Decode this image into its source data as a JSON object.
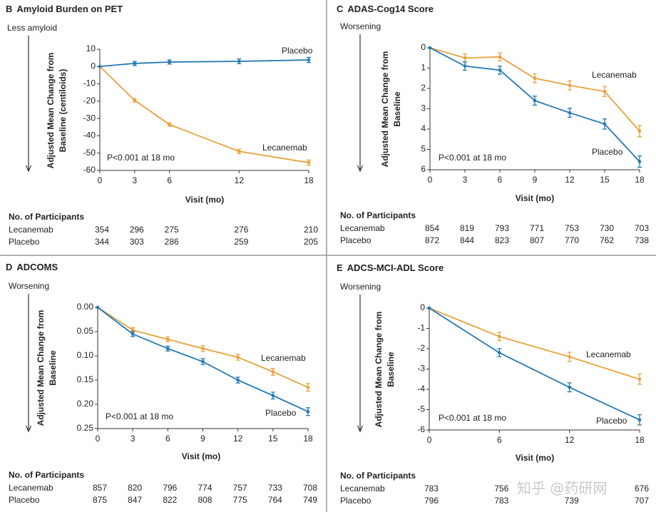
{
  "chart_data": [
    {
      "type": "line",
      "panel_label": "B",
      "title": "Amyloid Burden on PET",
      "direction_label": "Less amyloid",
      "ylabel": [
        "Adjusted Mean Change from",
        "Baseline (centiloids)"
      ],
      "xlabel": "Visit (mo)",
      "annotation": "P<0.001 at 18 mo",
      "x": [
        0,
        3,
        6,
        12,
        18
      ],
      "xlim": [
        0,
        18
      ],
      "xticks": [
        0,
        3,
        6,
        12,
        18
      ],
      "ylim": [
        -60,
        10
      ],
      "yticks": [
        10,
        0,
        -10,
        -20,
        -30,
        -40,
        -50,
        -60
      ],
      "y_inverted": false,
      "series": [
        {
          "name": "Lecanemab",
          "color": "#e8a23a",
          "values": [
            0,
            -19.5,
            -33.5,
            -49,
            -55.5
          ],
          "errors": [
            null,
            1,
            1,
            1.3,
            1.5
          ]
        },
        {
          "name": "Placebo",
          "color": "#2278b5",
          "values": [
            0,
            1.8,
            2.6,
            3,
            3.8
          ],
          "errors": [
            null,
            1.2,
            1.2,
            1.4,
            1.5
          ]
        }
      ],
      "table_title": "No. of Participants",
      "table": [
        [
          354,
          296,
          275,
          276,
          210
        ],
        [
          344,
          303,
          286,
          259,
          205
        ]
      ]
    },
    {
      "type": "line",
      "panel_label": "C",
      "title": "ADAS-Cog14 Score",
      "direction_label": "Worsening",
      "ylabel": [
        "Adjusted Mean Change from",
        "Baseline"
      ],
      "xlabel": "Visit (mo)",
      "annotation": "P<0.001 at 18 mo",
      "x": [
        0,
        3,
        6,
        9,
        12,
        15,
        18
      ],
      "xlim": [
        0,
        18
      ],
      "xticks": [
        0,
        3,
        6,
        9,
        12,
        15,
        18
      ],
      "ylim": [
        0,
        6
      ],
      "yticks": [
        0,
        1,
        2,
        3,
        4,
        5,
        6
      ],
      "y_inverted": true,
      "series": [
        {
          "name": "Lecanemab",
          "color": "#e8a23a",
          "values": [
            0,
            0.5,
            0.45,
            1.5,
            1.85,
            2.15,
            4.1
          ],
          "errors": [
            null,
            0.2,
            0.2,
            0.22,
            0.22,
            0.25,
            0.28
          ]
        },
        {
          "name": "Placebo",
          "color": "#2278b5",
          "values": [
            0,
            0.9,
            1.1,
            2.6,
            3.2,
            3.75,
            5.6
          ],
          "errors": [
            null,
            0.2,
            0.2,
            0.22,
            0.22,
            0.25,
            0.28
          ]
        }
      ],
      "table_title": "No. of Participants",
      "table": [
        [
          854,
          819,
          793,
          771,
          753,
          730,
          703
        ],
        [
          872,
          844,
          823,
          807,
          770,
          762,
          738
        ]
      ]
    },
    {
      "type": "line",
      "panel_label": "D",
      "title": "ADCOMS",
      "direction_label": "Worsening",
      "ylabel": [
        "Adjusted Mean Change from",
        "Baseline"
      ],
      "xlabel": "Visit (mo)",
      "annotation": "P<0.001 at 18 mo",
      "x": [
        0,
        3,
        6,
        9,
        12,
        15,
        18
      ],
      "xlim": [
        0,
        18
      ],
      "xticks": [
        0,
        3,
        6,
        9,
        12,
        15,
        18
      ],
      "ylim": [
        0,
        0.25
      ],
      "yticks": [
        {
          "value": 0,
          "label": "0.00"
        },
        {
          "value": 0.05,
          "label": "0.05"
        },
        {
          "value": 0.1,
          "label": "0.10"
        },
        {
          "value": 0.15,
          "label": "0.15"
        },
        {
          "value": 0.2,
          "label": "0.20"
        },
        {
          "value": 0.25,
          "label": "0.25"
        }
      ],
      "y_inverted": true,
      "series": [
        {
          "name": "Lecanemab",
          "color": "#e8a23a",
          "values": [
            0,
            0.047,
            0.066,
            0.085,
            0.103,
            0.133,
            0.165
          ],
          "errors": [
            null,
            0.005,
            0.005,
            0.006,
            0.006,
            0.007,
            0.008
          ]
        },
        {
          "name": "Placebo",
          "color": "#2278b5",
          "values": [
            0,
            0.055,
            0.085,
            0.112,
            0.15,
            0.182,
            0.215
          ],
          "errors": [
            null,
            0.005,
            0.005,
            0.006,
            0.006,
            0.007,
            0.008
          ]
        }
      ],
      "table_title": "No. of Participants",
      "table": [
        [
          857,
          820,
          796,
          774,
          757,
          733,
          708
        ],
        [
          875,
          847,
          822,
          808,
          775,
          764,
          749
        ]
      ]
    },
    {
      "type": "line",
      "panel_label": "E",
      "title": "ADCS-MCI-ADL Score",
      "direction_label": "Worsening",
      "ylabel": [
        "Adjusted Mean Change from",
        "Baseline"
      ],
      "xlabel": "Visit (mo)",
      "annotation": "P<0.001 at 18 mo",
      "x": [
        0,
        6,
        12,
        18
      ],
      "xlim": [
        0,
        18
      ],
      "xticks": [
        0,
        6,
        12,
        18
      ],
      "ylim": [
        -6,
        0
      ],
      "yticks": [
        0,
        -1,
        -2,
        -3,
        -4,
        -5,
        -6
      ],
      "y_inverted": false,
      "series": [
        {
          "name": "Lecanemab",
          "color": "#e8a23a",
          "values": [
            0,
            -1.4,
            -2.4,
            -3.5
          ],
          "errors": [
            null,
            0.2,
            0.22,
            0.25
          ]
        },
        {
          "name": "Placebo",
          "color": "#2278b5",
          "values": [
            0,
            -2.2,
            -3.9,
            -5.5
          ],
          "errors": [
            null,
            0.2,
            0.22,
            0.25
          ]
        }
      ],
      "table_title": "No. of Participants",
      "table": [
        [
          783,
          756,
          null,
          676
        ],
        [
          796,
          783,
          739,
          707
        ]
      ]
    }
  ],
  "watermark": "知乎 @药研网"
}
